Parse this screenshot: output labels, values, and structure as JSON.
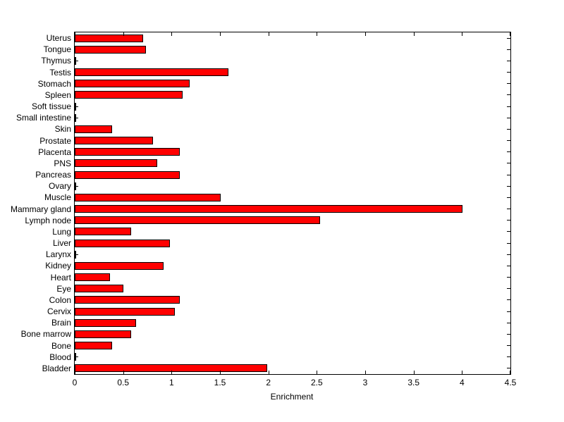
{
  "chart_data": {
    "type": "bar",
    "orientation": "horizontal",
    "title": "",
    "xlabel": "Enrichment",
    "ylabel": "",
    "xlim": [
      0,
      4.5
    ],
    "xticks": [
      0,
      0.5,
      1,
      1.5,
      2,
      2.5,
      3,
      3.5,
      4,
      4.5
    ],
    "xtick_labels": [
      "0",
      "0.5",
      "1",
      "1.5",
      "2",
      "2.5",
      "3",
      "3.5",
      "4",
      "4.5"
    ],
    "categories": [
      "Uterus",
      "Tongue",
      "Thymus",
      "Testis",
      "Stomach",
      "Spleen",
      "Soft tissue",
      "Small intestine",
      "Skin",
      "Prostate",
      "Placenta",
      "PNS",
      "Pancreas",
      "Ovary",
      "Muscle",
      "Mammary gland",
      "Lymph node",
      "Lung",
      "Liver",
      "Larynx",
      "Kidney",
      "Heart",
      "Eye",
      "Colon",
      "Cervix",
      "Brain",
      "Bone marrow",
      "Bone",
      "Blood",
      "Bladder"
    ],
    "categories_order": "top-to-bottom",
    "values": [
      0.72,
      0.75,
      0,
      1.6,
      1.2,
      1.13,
      0,
      0,
      0.4,
      0.82,
      1.1,
      0.87,
      1.1,
      0,
      1.52,
      4.02,
      2.55,
      0.6,
      1.0,
      0,
      0.93,
      0.38,
      0.52,
      1.1,
      1.05,
      0.65,
      0.6,
      0.4,
      0,
      2.0
    ],
    "bar_color": "#ff0000",
    "bar_edge_color": "#000000",
    "axis_color": "#000000",
    "background_color": "#ffffff",
    "grid": false,
    "legend": null
  }
}
